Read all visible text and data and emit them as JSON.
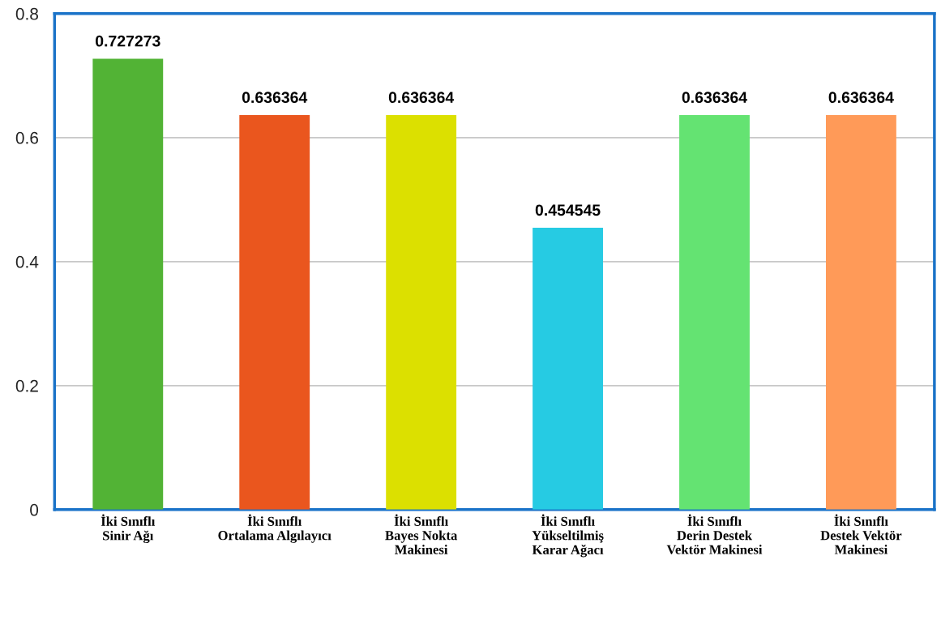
{
  "chart_data": {
    "type": "bar",
    "categories": [
      "İki Sınıflı\nSinir Ağı",
      "İki Sınıflı\nOrtalama Algılayıcı",
      "İki Sınıflı\nBayes Nokta\nMakinesi",
      "İki Sınıflı\nYükseltilmiş\nKarar Ağacı",
      "İki Sınıflı\nDerin Destek\nVektör Makinesi",
      "İki Sınıflı\nDestek Vektör\nMakinesi"
    ],
    "values": [
      0.727273,
      0.636364,
      0.636364,
      0.454545,
      0.636364,
      0.636364
    ],
    "colors": [
      "#52b335",
      "#ea561e",
      "#dce000",
      "#26cbe3",
      "#64e372",
      "#ff9a58"
    ],
    "ylim": [
      0,
      0.8
    ],
    "yticks": [
      0,
      0.2,
      0.4,
      0.6,
      0.8
    ],
    "grid": "y",
    "data_labels": true
  }
}
